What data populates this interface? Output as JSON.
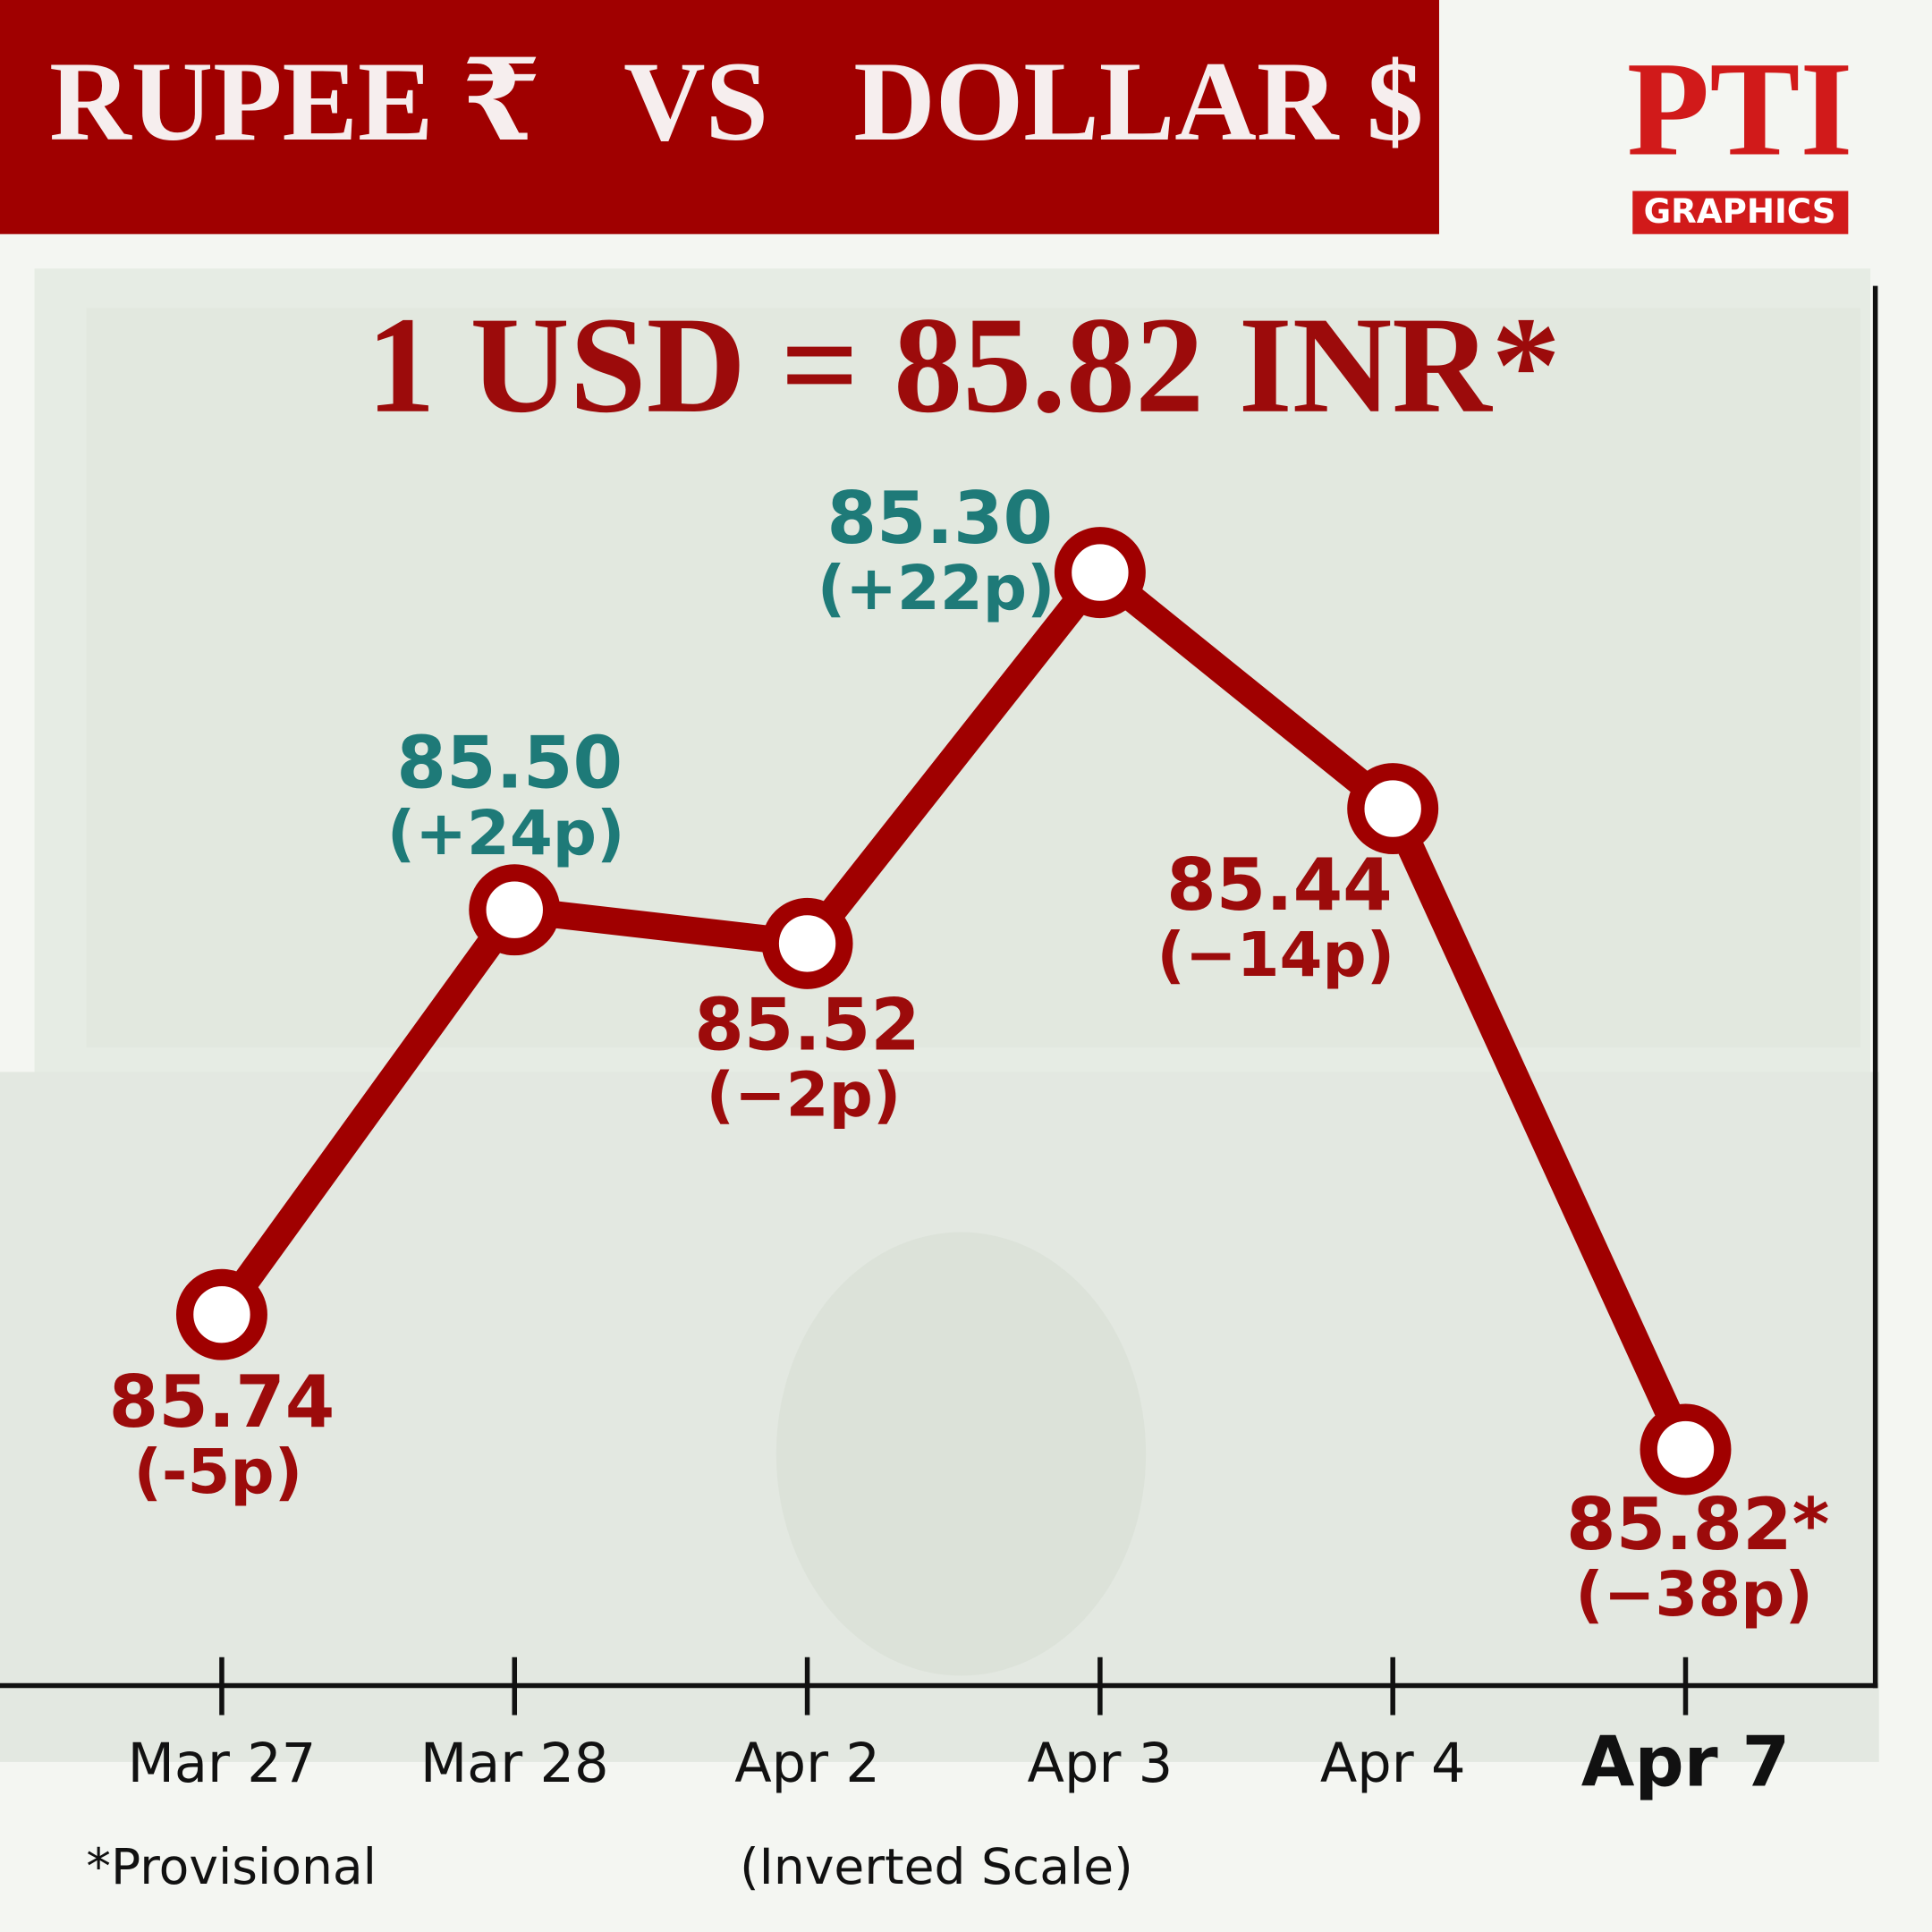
{
  "chart_data": {
    "type": "line",
    "title": "RUPEE ₹   VS   DOLLAR $",
    "headline": "1 USD = 85.82 INR*",
    "logo_text": "PTI",
    "logo_subtext": "GRAPHICS",
    "categories": [
      "Mar 27",
      "Mar 28",
      "Apr 2",
      "Apr 3",
      "Apr 4",
      "Apr 7"
    ],
    "values": [
      85.74,
      85.5,
      85.52,
      85.3,
      85.44,
      85.82
    ],
    "value_labels": [
      "85.74",
      "85.50",
      "85.52",
      "85.30",
      "85.44",
      "85.82*"
    ],
    "change_labels": [
      "(-5p)",
      "(+24p)",
      "(−2p)",
      "(+22p)",
      "(−14p)",
      "(−38p)"
    ],
    "value_label_colors": [
      "#9c0b0b",
      "#1e7a78",
      "#9c0b0b",
      "#1e7a78",
      "#9c0b0b",
      "#9c0b0b"
    ],
    "color": "#a00000",
    "ylim": [
      85.13,
      85.96
    ],
    "inverted": true,
    "footnote": "*Provisional",
    "scale_note": "(Inverted Scale)"
  }
}
